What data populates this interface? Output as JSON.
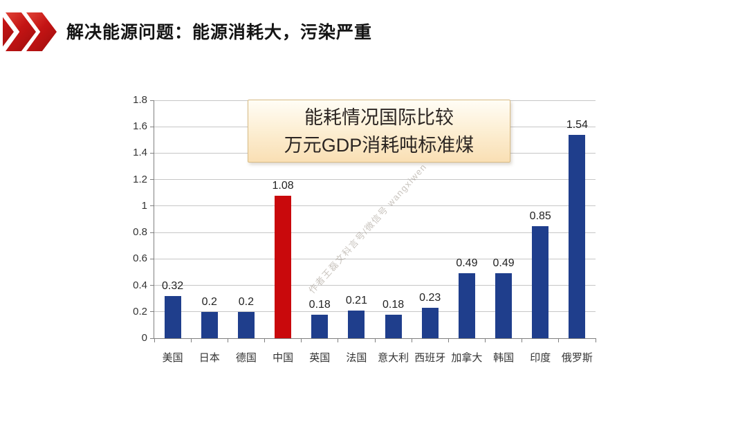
{
  "slide": {
    "title": "解决能源问题：能源消耗大，污染严重"
  },
  "watermark": "作者王磊文科言号/微信号 wangxiwen",
  "colors": {
    "bar_blue": "#1f3e8c",
    "bar_red": "#c9090c",
    "chevron_red": "#c41414",
    "box_background": "#fbe6c0",
    "box_border": "#d8bb84",
    "gridline": "#c6c6c6",
    "axis": "#7f7f7f"
  },
  "chart_data": {
    "type": "bar",
    "title_lines": [
      "能耗情况国际比较",
      "万元GDP消耗吨标准煤"
    ],
    "categories": [
      "美国",
      "日本",
      "德国",
      "中国",
      "英国",
      "法国",
      "意大利",
      "西班牙",
      "加拿大",
      "韩国",
      "印度",
      "俄罗斯"
    ],
    "values": [
      0.32,
      0.2,
      0.2,
      1.08,
      0.18,
      0.21,
      0.18,
      0.23,
      0.49,
      0.49,
      0.85,
      1.54
    ],
    "data_labels": [
      "0.32",
      "0.2",
      "0.2",
      "1.08",
      "0.18",
      "0.21",
      "0.18",
      "0.23",
      "0.49",
      "0.49",
      "0.85",
      "1.54"
    ],
    "highlight_index": 3,
    "highlight_category": "中国",
    "xlabel": "",
    "ylabel": "",
    "ylim": [
      0,
      1.8
    ],
    "ytick_step": 0.2,
    "yticks": [
      "0",
      "0.2",
      "0.4",
      "0.6",
      "0.8",
      "1",
      "1.2",
      "1.4",
      "1.6",
      "1.8"
    ],
    "grid": true,
    "legend": false
  }
}
